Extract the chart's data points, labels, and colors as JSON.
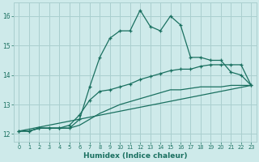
{
  "xlabel": "Humidex (Indice chaleur)",
  "bg_color": "#ceeaea",
  "grid_color": "#aacfcf",
  "line_color": "#1a7060",
  "xlim": [
    -0.5,
    23.5
  ],
  "ylim": [
    11.75,
    16.45
  ],
  "yticks": [
    12,
    13,
    14,
    15,
    16
  ],
  "xticks": [
    0,
    1,
    2,
    3,
    4,
    5,
    6,
    7,
    8,
    9,
    10,
    11,
    12,
    13,
    14,
    15,
    16,
    17,
    18,
    19,
    20,
    21,
    22,
    23
  ],
  "line1_x": [
    0,
    1,
    2,
    3,
    4,
    5,
    6,
    7,
    8,
    9,
    10,
    11,
    12,
    13,
    14,
    15,
    16,
    17,
    18,
    19,
    20,
    21,
    22,
    23
  ],
  "line1_y": [
    12.1,
    12.1,
    12.2,
    12.2,
    12.2,
    12.2,
    12.5,
    13.6,
    14.6,
    15.25,
    15.5,
    15.5,
    16.2,
    15.65,
    15.5,
    16.0,
    15.7,
    14.6,
    14.6,
    14.5,
    14.5,
    14.1,
    14.0,
    13.65
  ],
  "line2_x": [
    0,
    1,
    2,
    3,
    4,
    5,
    6,
    7,
    8,
    9,
    10,
    11,
    12,
    13,
    14,
    15,
    16,
    17,
    18,
    19,
    20,
    21,
    22,
    23
  ],
  "line2_y": [
    12.1,
    12.1,
    12.2,
    12.2,
    12.2,
    12.3,
    12.65,
    13.15,
    13.45,
    13.5,
    13.6,
    13.7,
    13.85,
    13.95,
    14.05,
    14.15,
    14.2,
    14.2,
    14.3,
    14.35,
    14.35,
    14.35,
    14.35,
    13.65
  ],
  "line3_x": [
    0,
    1,
    2,
    3,
    4,
    5,
    6,
    7,
    8,
    9,
    10,
    11,
    12,
    13,
    14,
    15,
    16,
    17,
    18,
    19,
    20,
    21,
    22,
    23
  ],
  "line3_y": [
    12.1,
    12.1,
    12.2,
    12.2,
    12.2,
    12.2,
    12.3,
    12.5,
    12.7,
    12.85,
    13.0,
    13.1,
    13.2,
    13.3,
    13.4,
    13.5,
    13.5,
    13.55,
    13.6,
    13.6,
    13.6,
    13.65,
    13.65,
    13.65
  ],
  "line4_x": [
    0,
    23
  ],
  "line4_y": [
    12.1,
    13.65
  ]
}
